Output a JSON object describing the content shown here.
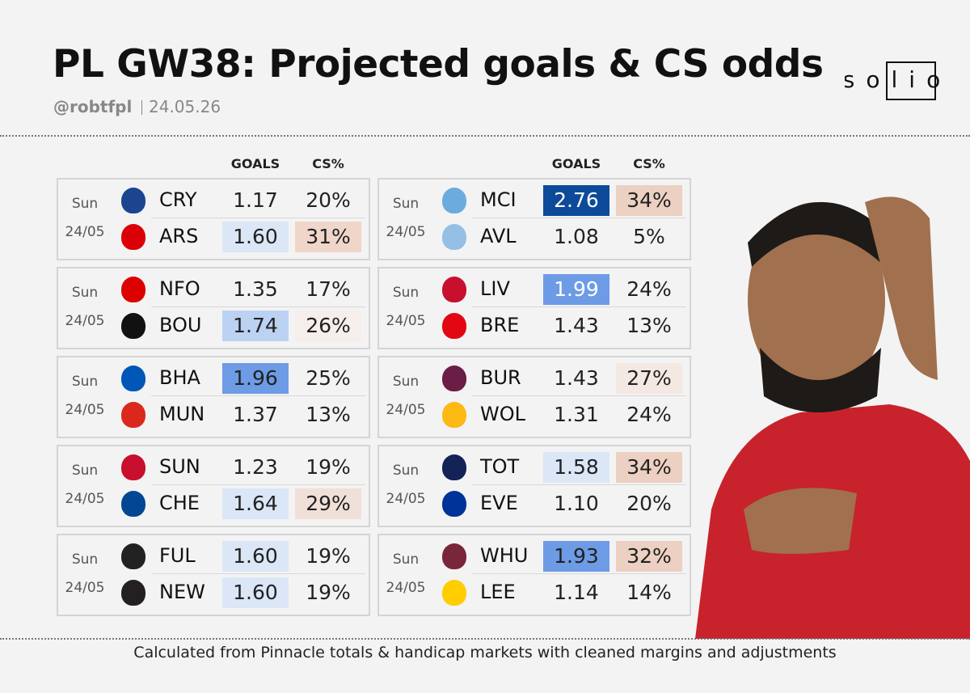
{
  "header": {
    "title": "PL GW38: Projected goals & CS odds",
    "handle": "@robtfpl",
    "date": "24.05.26",
    "logo": "solio"
  },
  "columns": [
    "GOALS",
    "CS%"
  ],
  "panels": [
    {
      "matches": [
        {
          "day": "Sun",
          "date": "24/05",
          "teams": [
            {
              "team": "CRY",
              "goals": "1.17",
              "cs": "20%",
              "logo_color": "#1b458f"
            },
            {
              "team": "ARS",
              "goals": "1.60",
              "cs": "31%",
              "goals_bg": "#dbe6f7",
              "cs_bg": "#f0d6c9",
              "logo_color": "#db0007"
            }
          ]
        },
        {
          "day": "Sun",
          "date": "24/05",
          "teams": [
            {
              "team": "NFO",
              "goals": "1.35",
              "cs": "17%",
              "logo_color": "#dd0000"
            },
            {
              "team": "BOU",
              "goals": "1.74",
              "cs": "26%",
              "goals_bg": "#bcd2f3",
              "cs_bg": "#f5eeea",
              "logo_color": "#111111"
            }
          ]
        },
        {
          "day": "Sun",
          "date": "24/05",
          "teams": [
            {
              "team": "BHA",
              "goals": "1.96",
              "cs": "25%",
              "goals_bg": "#6d9be6",
              "logo_color": "#0057b8"
            },
            {
              "team": "MUN",
              "goals": "1.37",
              "cs": "13%",
              "logo_color": "#da291c"
            }
          ]
        },
        {
          "day": "Sun",
          "date": "24/05",
          "teams": [
            {
              "team": "SUN",
              "goals": "1.23",
              "cs": "19%",
              "logo_color": "#c8102e"
            },
            {
              "team": "CHE",
              "goals": "1.64",
              "cs": "29%",
              "goals_bg": "#dbe6f7",
              "cs_bg": "#f1e0d8",
              "logo_color": "#034694"
            }
          ]
        },
        {
          "day": "Sun",
          "date": "24/05",
          "teams": [
            {
              "team": "FUL",
              "goals": "1.60",
              "cs": "19%",
              "goals_bg": "#dbe6f7",
              "logo_color": "#222222"
            },
            {
              "team": "NEW",
              "goals": "1.60",
              "cs": "19%",
              "goals_bg": "#dbe6f7",
              "logo_color": "#241f20"
            }
          ]
        }
      ]
    },
    {
      "matches": [
        {
          "day": "Sun",
          "date": "24/05",
          "teams": [
            {
              "team": "MCI",
              "goals": "2.76",
              "cs": "34%",
              "goals_bg": "#0d4a9a",
              "goals_text": "#ffffff",
              "cs_bg": "#ecd0c1",
              "logo_color": "#6cabdd"
            },
            {
              "team": "AVL",
              "goals": "1.08",
              "cs": "5%",
              "logo_color": "#95bfe5"
            }
          ]
        },
        {
          "day": "Sun",
          "date": "24/05",
          "teams": [
            {
              "team": "LIV",
              "goals": "1.99",
              "cs": "24%",
              "goals_bg": "#6d9be6",
              "goals_text": "#ffffff",
              "logo_color": "#c8102e"
            },
            {
              "team": "BRE",
              "goals": "1.43",
              "cs": "13%",
              "logo_color": "#e30613"
            }
          ]
        },
        {
          "day": "Sun",
          "date": "24/05",
          "teams": [
            {
              "team": "BUR",
              "goals": "1.43",
              "cs": "27%",
              "cs_bg": "#f4e8e2",
              "logo_color": "#6c1d45"
            },
            {
              "team": "WOL",
              "goals": "1.31",
              "cs": "24%",
              "logo_color": "#fdb913"
            }
          ]
        },
        {
          "day": "Sun",
          "date": "24/05",
          "teams": [
            {
              "team": "TOT",
              "goals": "1.58",
              "cs": "34%",
              "goals_bg": "#dbe6f7",
              "cs_bg": "#ecd0c1",
              "logo_color": "#132257"
            },
            {
              "team": "EVE",
              "goals": "1.10",
              "cs": "20%",
              "logo_color": "#003399"
            }
          ]
        },
        {
          "day": "Sun",
          "date": "24/05",
          "teams": [
            {
              "team": "WHU",
              "goals": "1.93",
              "cs": "32%",
              "goals_bg": "#6d9be6",
              "cs_bg": "#ecd0c1",
              "logo_color": "#7a263a"
            },
            {
              "team": "LEE",
              "goals": "1.14",
              "cs": "14%",
              "logo_color": "#ffcd00"
            }
          ]
        }
      ]
    }
  ],
  "footnote": "Calculated from  Pinnacle totals & handicap markets with cleaned margins and adjustments"
}
